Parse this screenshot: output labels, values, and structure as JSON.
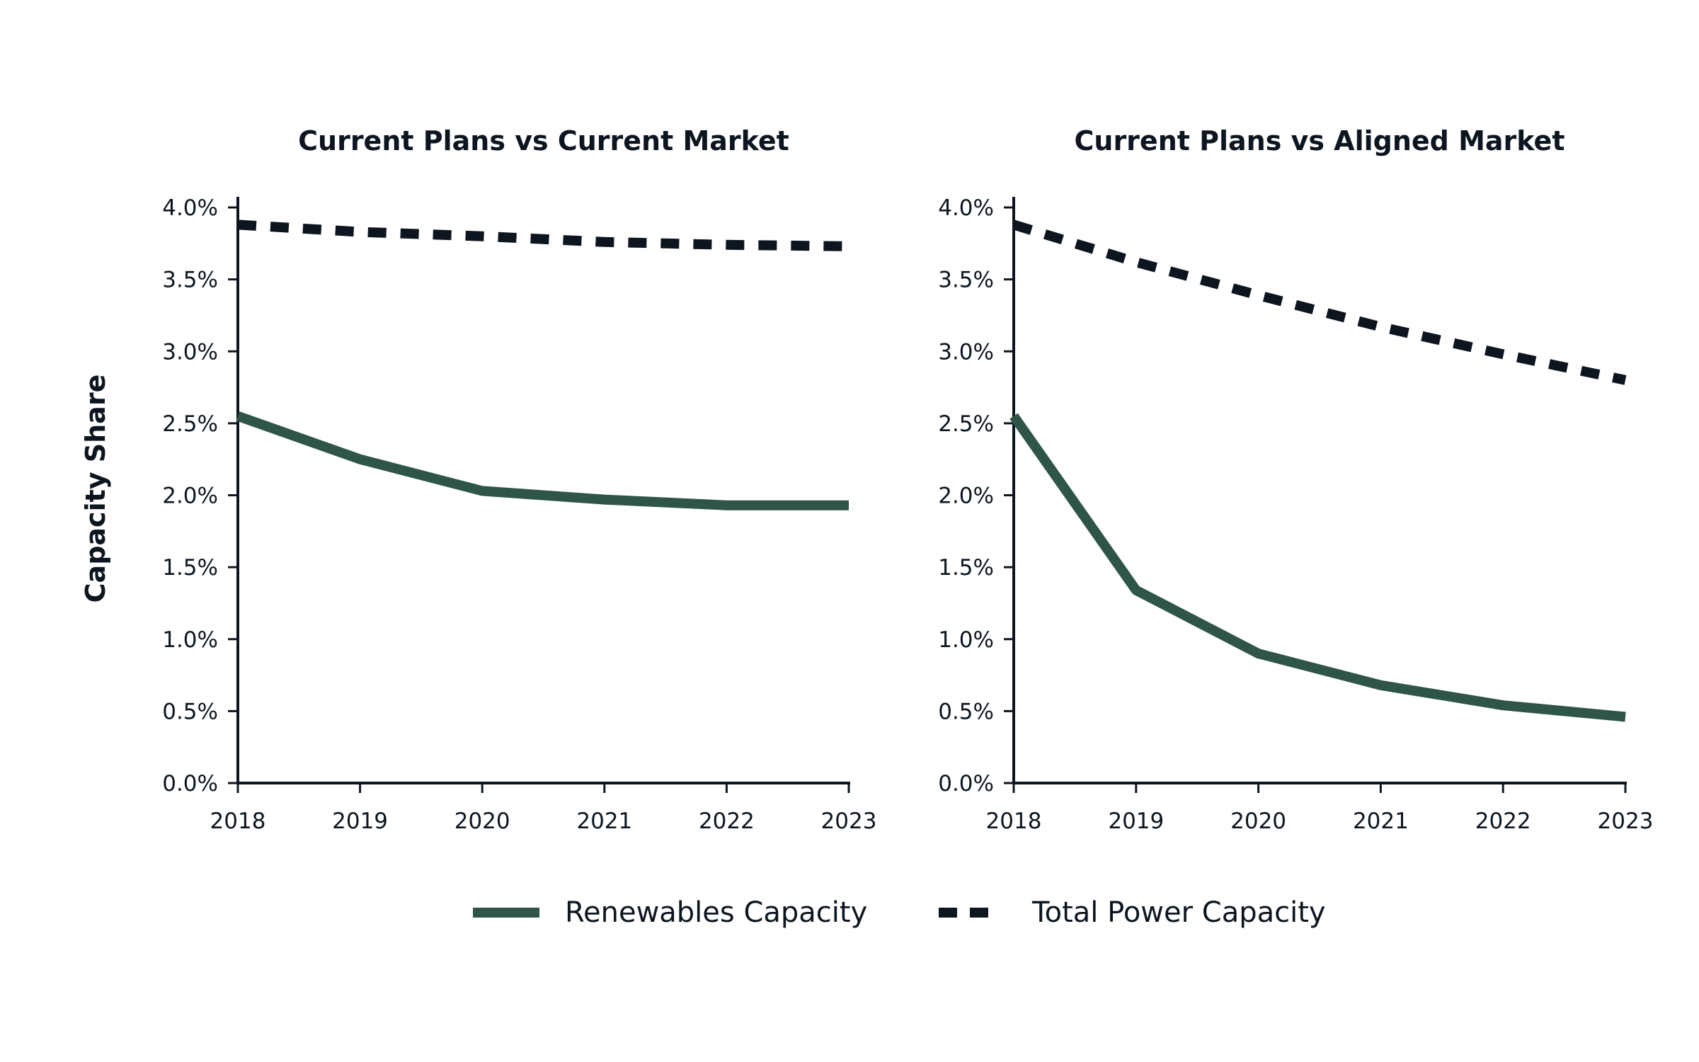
{
  "colors": {
    "renewables": "#2e5547",
    "total_power": "#0d1620",
    "axis": "#0d1620",
    "text": "#0d1620",
    "background": "#ffffff"
  },
  "ylabel": "Capacity Share",
  "legend": {
    "renewables_label": "Renewables Capacity",
    "total_label": "Total Power Capacity",
    "placement": "bottom-center"
  },
  "chart_data": [
    {
      "type": "line",
      "title": "Current Plans vs Current Market",
      "xlabel": "",
      "ylabel": "Capacity Share",
      "x": [
        2018,
        2019,
        2020,
        2021,
        2022,
        2023
      ],
      "ylim": [
        0,
        4.0
      ],
      "y_ticks": [
        "0.0%",
        "0.5%",
        "1.0%",
        "1.5%",
        "2.0%",
        "2.5%",
        "3.0%",
        "3.5%",
        "4.0%"
      ],
      "grid": false,
      "series": [
        {
          "name": "Renewables Capacity",
          "style": "solid",
          "values": [
            2.55,
            2.25,
            2.03,
            1.97,
            1.93,
            1.93
          ]
        },
        {
          "name": "Total Power Capacity",
          "style": "dashed",
          "values": [
            3.88,
            3.83,
            3.8,
            3.76,
            3.74,
            3.73
          ]
        }
      ]
    },
    {
      "type": "line",
      "title": "Current Plans vs Aligned Market",
      "xlabel": "",
      "ylabel": "",
      "x": [
        2018,
        2019,
        2020,
        2021,
        2022,
        2023
      ],
      "ylim": [
        0,
        4.0
      ],
      "y_ticks": [
        "0.0%",
        "0.5%",
        "1.0%",
        "1.5%",
        "2.0%",
        "2.5%",
        "3.0%",
        "3.5%",
        "4.0%"
      ],
      "grid": false,
      "series": [
        {
          "name": "Renewables Capacity",
          "style": "solid",
          "values": [
            2.55,
            1.34,
            0.9,
            0.68,
            0.54,
            0.46
          ]
        },
        {
          "name": "Total Power Capacity",
          "style": "dashed",
          "values": [
            3.88,
            3.62,
            3.39,
            3.17,
            2.98,
            2.8
          ]
        }
      ]
    }
  ]
}
